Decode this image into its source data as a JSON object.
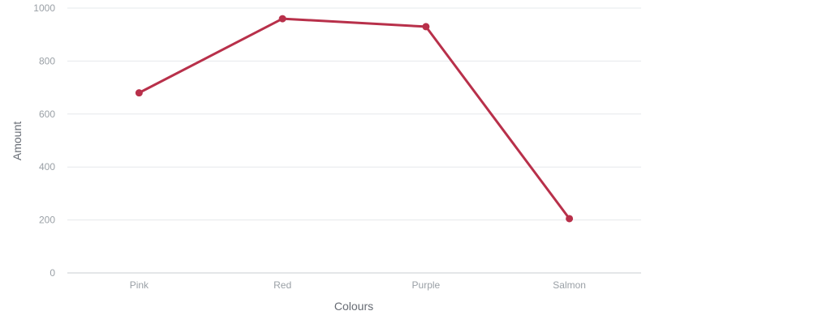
{
  "chart_data": {
    "type": "line",
    "xlabel": "Colours",
    "ylabel": "Amount",
    "categories": [
      "Pink",
      "Red",
      "Purple",
      "Salmon"
    ],
    "series": [
      {
        "values": [
          680,
          960,
          930,
          205
        ],
        "color": "#b8304a"
      }
    ],
    "ylim": [
      0,
      1000
    ],
    "yticks": [
      0,
      200,
      400,
      600,
      800,
      1000
    ],
    "grid": true,
    "legend": "none"
  }
}
